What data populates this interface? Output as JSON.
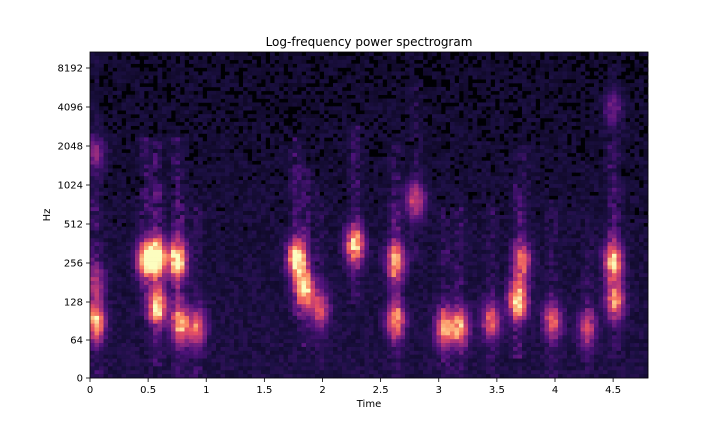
{
  "chart_data": {
    "type": "heatmap",
    "title": "Log-frequency power spectrogram",
    "xlabel": "Time",
    "ylabel": "Hz",
    "xlim": [
      0,
      4.8
    ],
    "x_scale": "linear",
    "y_scale": "log2 (librosa cqt/log axis)",
    "x_ticks": [
      "0",
      "0.5",
      "1",
      "1.5",
      "2",
      "2.5",
      "3",
      "3.5",
      "4",
      "4.5"
    ],
    "x_tick_values": [
      0,
      0.5,
      1,
      1.5,
      2,
      2.5,
      3,
      3.5,
      4,
      4.5
    ],
    "y_ticks": [
      "0",
      "64",
      "128",
      "256",
      "512",
      "1024",
      "2048",
      "4096",
      "8192"
    ],
    "colormap": "magma",
    "grid": false,
    "energy_regions": [
      {
        "t": 0.05,
        "hz": 90,
        "level": 0.75
      },
      {
        "t": 0.05,
        "hz": 180,
        "level": 0.35
      },
      {
        "t": 0.05,
        "hz": 1800,
        "level": 0.3
      },
      {
        "t": 0.48,
        "hz": 270,
        "level": 0.85
      },
      {
        "t": 0.58,
        "hz": 280,
        "level": 0.95
      },
      {
        "t": 0.58,
        "hz": 115,
        "level": 0.8
      },
      {
        "t": 0.75,
        "hz": 270,
        "level": 0.95
      },
      {
        "t": 0.78,
        "hz": 85,
        "level": 0.75
      },
      {
        "t": 0.92,
        "hz": 80,
        "level": 0.55
      },
      {
        "t": 1.78,
        "hz": 275,
        "level": 1.0
      },
      {
        "t": 1.85,
        "hz": 160,
        "level": 0.85
      },
      {
        "t": 1.98,
        "hz": 110,
        "level": 0.5
      },
      {
        "t": 2.28,
        "hz": 350,
        "level": 0.85
      },
      {
        "t": 2.63,
        "hz": 260,
        "level": 0.75
      },
      {
        "t": 2.63,
        "hz": 90,
        "level": 0.65
      },
      {
        "t": 2.8,
        "hz": 780,
        "level": 0.5
      },
      {
        "t": 3.05,
        "hz": 80,
        "level": 0.7
      },
      {
        "t": 3.18,
        "hz": 80,
        "level": 0.7
      },
      {
        "t": 3.45,
        "hz": 90,
        "level": 0.55
      },
      {
        "t": 3.68,
        "hz": 130,
        "level": 0.9
      },
      {
        "t": 3.72,
        "hz": 260,
        "level": 0.55
      },
      {
        "t": 3.98,
        "hz": 90,
        "level": 0.55
      },
      {
        "t": 4.28,
        "hz": 80,
        "level": 0.45
      },
      {
        "t": 4.5,
        "hz": 260,
        "level": 0.8
      },
      {
        "t": 4.52,
        "hz": 130,
        "level": 0.6
      },
      {
        "t": 4.5,
        "hz": 4000,
        "level": 0.25
      }
    ]
  }
}
